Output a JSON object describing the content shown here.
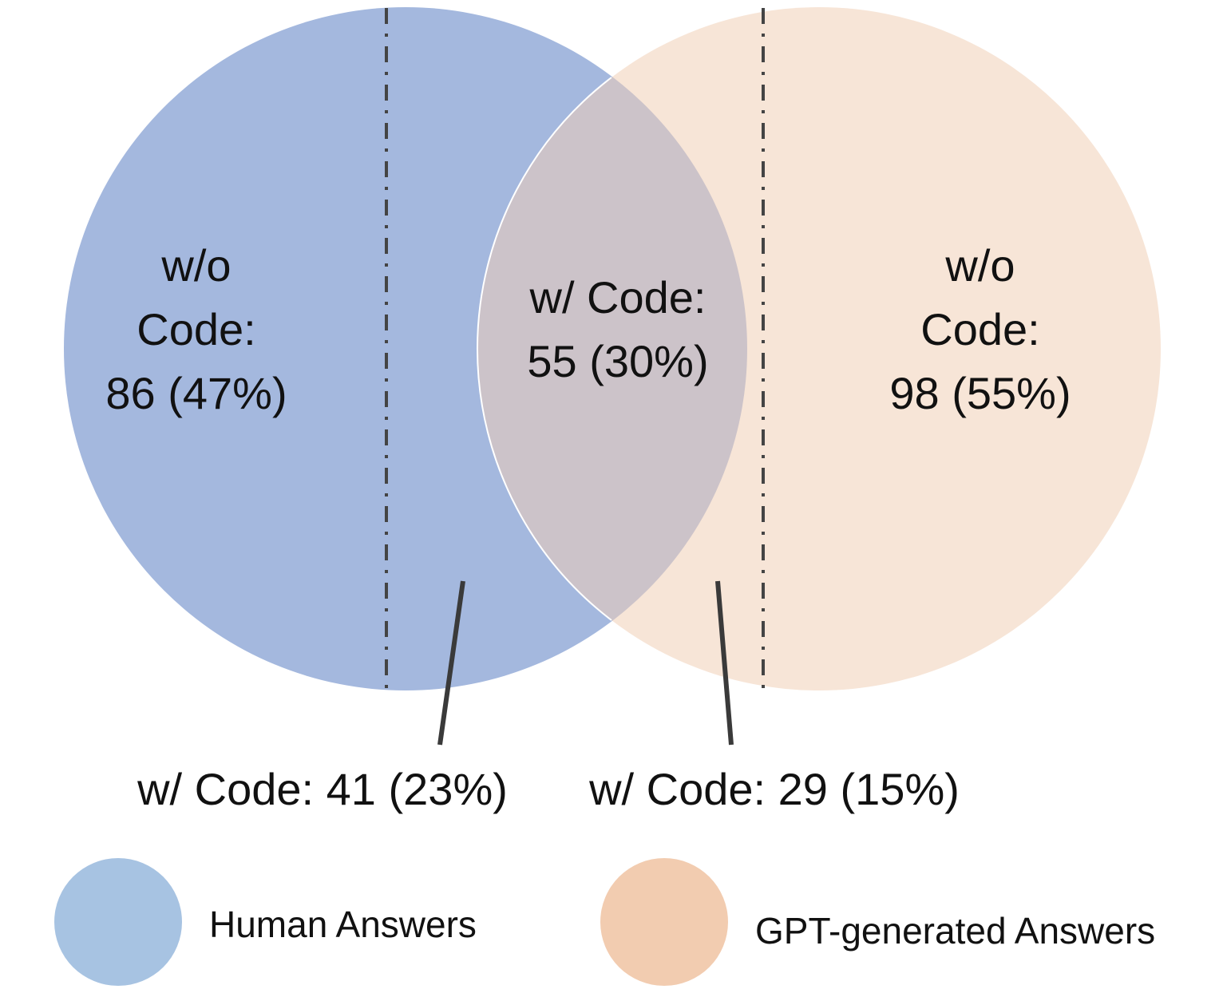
{
  "colors": {
    "human": "#a4b8de",
    "gpt": "#f7e5d7",
    "overlap": "#ccc3c9",
    "legend_human": "#a7c3e2",
    "legend_gpt": "#f2ccb0",
    "divider": "#444444"
  },
  "human_set": {
    "only_line1": "w/o",
    "only_line2": "Code:",
    "only_line3": "86 (47%)",
    "code_label": "w/ Code: 41 (23%)"
  },
  "overlap": {
    "line1": "w/ Code:",
    "line2": "55 (30%)"
  },
  "gpt_set": {
    "only_line1": "w/o",
    "only_line2": "Code:",
    "only_line3": "98 (55%)",
    "code_label": "w/ Code: 29 (15%)"
  },
  "legend": {
    "human_label": "Human Answers",
    "gpt_label": "GPT-generated Answers"
  }
}
